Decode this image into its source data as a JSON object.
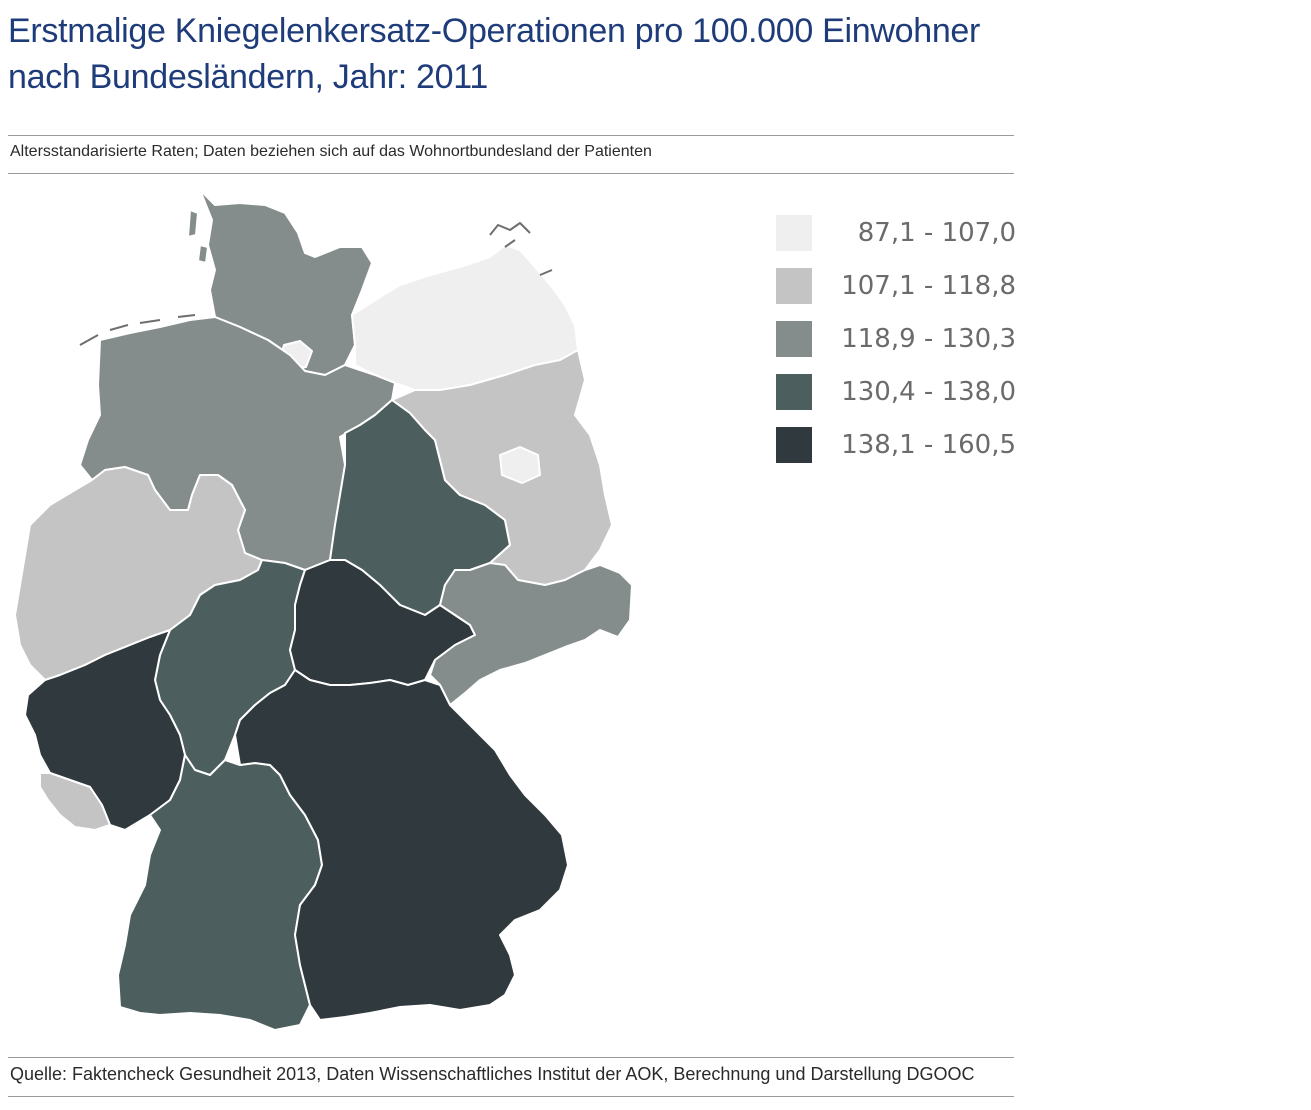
{
  "title_line1": "Erstmalige Kniegelenkersatz-Operationen pro 100.000 Einwohner",
  "title_line2": "nach Bundesländern, Jahr: 2011",
  "subtitle": "Altersstandarisierte Raten; Daten beziehen sich auf das Wohnortbundesland der Patienten",
  "source": "Quelle: Faktencheck Gesundheit 2013, Daten Wissenschaftliches Institut der AOK, Berechnung und Darstellung DGOOC",
  "colors": {
    "class1": "#efefef",
    "class2": "#c4c4c4",
    "class3": "#858c8c",
    "class4": "#4d5e5e",
    "class5": "#30393d",
    "title": "#1f3c7a",
    "legend_text": "#6b6b6b"
  },
  "legend": [
    {
      "label": "87,1 - 107,0",
      "color": "#efefef"
    },
    {
      "label": "107,1 - 118,8",
      "color": "#c4c4c4"
    },
    {
      "label": "118,9 - 130,3",
      "color": "#858c8c"
    },
    {
      "label": "130,4 - 138,0",
      "color": "#4d5e5e"
    },
    {
      "label": "138,1 - 160,5",
      "color": "#30393d"
    }
  ],
  "chart_data": {
    "type": "choropleth",
    "title": "Erstmalige Kniegelenkersatz-Operationen pro 100.000 Einwohner nach Bundesländern, Jahr: 2011",
    "subtitle": "Altersstandarisierte Raten; Daten beziehen sich auf das Wohnortbundesland der Patienten",
    "legend_classes": [
      "87,1 - 107,0",
      "107,1 - 118,8",
      "118,9 - 130,3",
      "130,4 - 138,0",
      "138,1 - 160,5"
    ],
    "legend_placement": "top-right"
  }
}
